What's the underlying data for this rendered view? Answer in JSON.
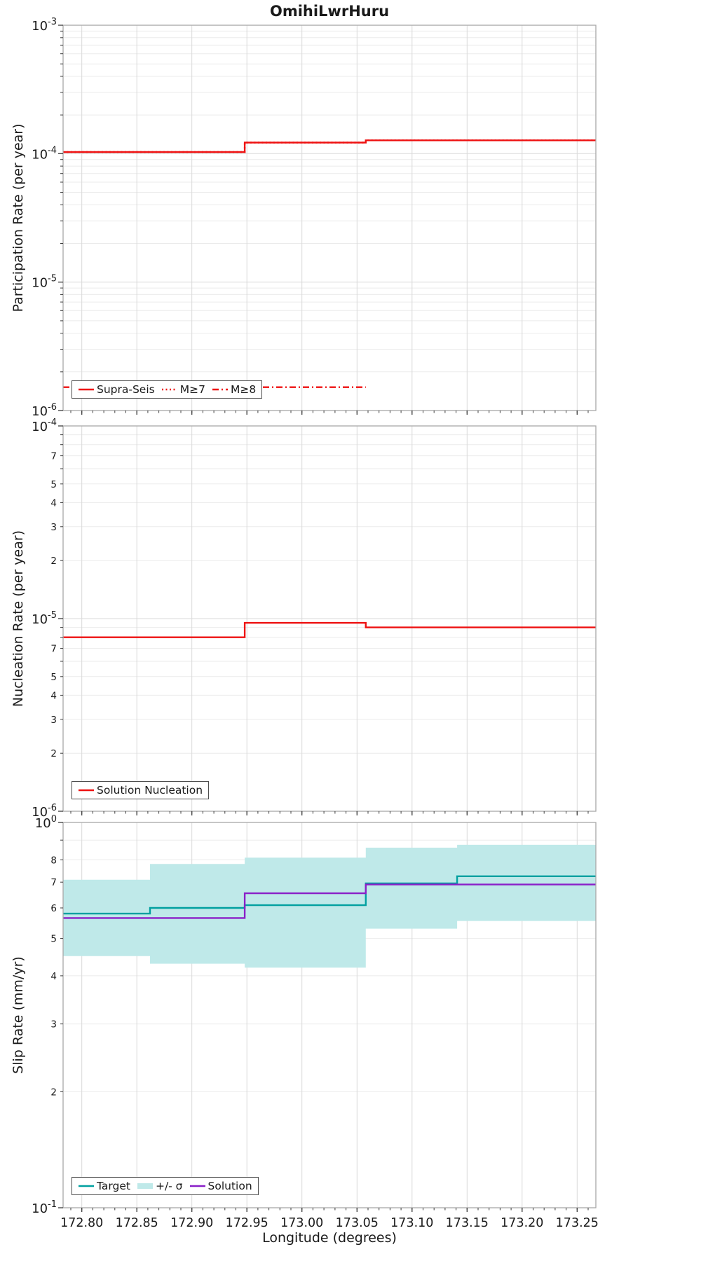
{
  "title": "OmihiLwrHuru",
  "colors": {
    "red": "#ee1111",
    "teal": "#00a0a0",
    "band": "#bfe9e9",
    "purple": "#8a1fc8",
    "grid_major": "#d9d9d9",
    "grid_minor": "#ebebeb",
    "frame": "#a8a8a8",
    "tick": "#3c3c3c",
    "text": "#1a1a1a"
  },
  "x": {
    "label": "Longitude (degrees)",
    "lim": [
      172.783,
      173.267
    ],
    "ticks": [
      172.8,
      172.85,
      172.9,
      172.95,
      173.0,
      173.05,
      173.1,
      173.15,
      173.2,
      173.25
    ],
    "tick_labels": [
      "172.80",
      "172.85",
      "172.90",
      "172.95",
      "173.00",
      "173.05",
      "173.10",
      "173.15",
      "173.20",
      "173.25"
    ]
  },
  "chart_data": [
    {
      "type": "line",
      "panel": "participation",
      "ylabel": "Participation Rate (per year)",
      "yscale": "log",
      "ylim": [
        1e-06,
        0.001
      ],
      "xlim": [
        172.783,
        173.267
      ],
      "grid": true,
      "yticks": {
        "major_exponents": [
          -3,
          -4,
          -5,
          -6
        ],
        "minor_labels": []
      },
      "series": [
        {
          "name": "Supra-Seis",
          "style": "solid",
          "color": "red",
          "edges": [
            172.783,
            172.948,
            173.058,
            173.267
          ],
          "values": [
            0.000103,
            0.000122,
            0.000127
          ]
        },
        {
          "name": "M≥7",
          "style": "dotted",
          "color": "red",
          "edges": [
            172.783,
            172.948,
            173.058,
            173.267
          ],
          "values": [
            0.000103,
            0.000122,
            0.000127
          ]
        },
        {
          "name": "M≥8",
          "style": "dashdot",
          "color": "red",
          "edges": [
            172.783,
            173.058
          ],
          "values": [
            1.52e-06
          ]
        }
      ],
      "legend_position": "lower left",
      "legend": [
        {
          "label": "Supra-Seis",
          "style": "solid",
          "color": "red"
        },
        {
          "label": "M≥7",
          "style": "dotted",
          "color": "red"
        },
        {
          "label": "M≥8",
          "style": "dashdot",
          "color": "red"
        }
      ]
    },
    {
      "type": "line",
      "panel": "nucleation",
      "ylabel": "Nucleation Rate (per year)",
      "yscale": "log",
      "ylim": [
        1e-06,
        0.0001
      ],
      "xlim": [
        172.783,
        173.267
      ],
      "grid": true,
      "yticks": {
        "major_exponents": [
          -4,
          -5,
          -6
        ],
        "minor_labels": [
          7,
          5,
          4,
          3,
          2
        ]
      },
      "series": [
        {
          "name": "Solution Nucleation",
          "style": "solid",
          "color": "red",
          "edges": [
            172.783,
            172.948,
            173.058,
            173.267
          ],
          "values": [
            8e-06,
            9.5e-06,
            9e-06
          ]
        }
      ],
      "legend_position": "lower left",
      "legend": [
        {
          "label": "Solution Nucleation",
          "style": "solid",
          "color": "red"
        }
      ]
    },
    {
      "type": "line",
      "panel": "slip_rate",
      "ylabel": "Slip Rate (mm/yr)",
      "xlabel": "Longitude (degrees)",
      "yscale": "log",
      "ylim": [
        0.1,
        1.0
      ],
      "xlim": [
        172.783,
        173.267
      ],
      "grid": true,
      "yticks": {
        "major_exponents": [
          0,
          -1
        ],
        "minor_labels": [
          8,
          7,
          6,
          5,
          4,
          3,
          2
        ]
      },
      "series": [
        {
          "name": "+/- σ",
          "style": "band",
          "color": "band",
          "edges": [
            172.783,
            172.862,
            172.948,
            173.058,
            173.141,
            173.267
          ],
          "lo": [
            0.45,
            0.43,
            0.42,
            0.53,
            0.555
          ],
          "hi": [
            0.71,
            0.78,
            0.81,
            0.86,
            0.875
          ]
        },
        {
          "name": "Target",
          "style": "solid",
          "color": "teal",
          "edges": [
            172.783,
            172.862,
            172.948,
            173.058,
            173.141,
            173.267
          ],
          "values": [
            0.58,
            0.6,
            0.61,
            0.695,
            0.725
          ]
        },
        {
          "name": "Solution",
          "style": "solid",
          "color": "purple",
          "edges": [
            172.783,
            172.862,
            172.948,
            173.058,
            173.141,
            173.267
          ],
          "values": [
            0.565,
            0.565,
            0.655,
            0.69,
            0.69
          ]
        }
      ],
      "legend_position": "lower left",
      "legend": [
        {
          "label": "Target",
          "style": "solid",
          "color": "teal"
        },
        {
          "label": "+/- σ",
          "style": "band",
          "color": "band"
        },
        {
          "label": "Solution",
          "style": "solid",
          "color": "purple"
        }
      ]
    }
  ]
}
